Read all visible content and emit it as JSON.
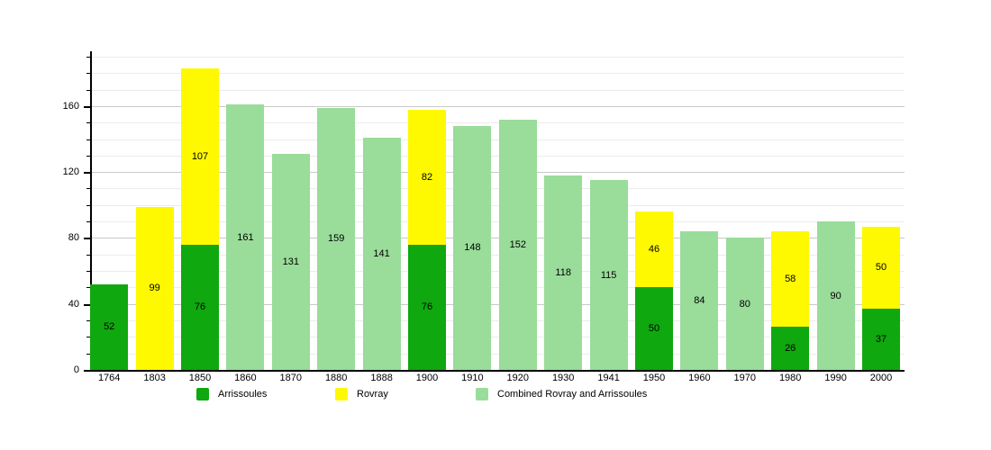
{
  "chart_data": {
    "type": "bar",
    "stacked": true,
    "title": "",
    "xlabel": "",
    "ylabel": "",
    "categories": [
      "1764",
      "1803",
      "1850",
      "1860",
      "1870",
      "1880",
      "1888",
      "1900",
      "1910",
      "1920",
      "1930",
      "1941",
      "1950",
      "1960",
      "1970",
      "1980",
      "1990",
      "2000"
    ],
    "series": [
      {
        "name": "Arrissoules",
        "color": "#0fa80f",
        "values": [
          52,
          null,
          76,
          null,
          null,
          null,
          null,
          76,
          null,
          null,
          null,
          null,
          50,
          null,
          null,
          26,
          null,
          37
        ]
      },
      {
        "name": "Rovray",
        "color": "#fef800",
        "values": [
          null,
          99,
          107,
          null,
          null,
          null,
          null,
          82,
          null,
          null,
          null,
          null,
          46,
          null,
          null,
          58,
          null,
          50
        ]
      },
      {
        "name": "Combined Rovray and Arrissoules",
        "color": "#9adc9a",
        "values": [
          null,
          null,
          null,
          161,
          131,
          159,
          141,
          null,
          148,
          152,
          118,
          115,
          null,
          84,
          80,
          null,
          90,
          null
        ]
      }
    ],
    "ylim": [
      0,
      192
    ],
    "yticks": [
      0,
      40,
      80,
      120,
      160
    ],
    "minor_tick_step": 10,
    "grid": true,
    "grid_max": 190,
    "legend_position": "bottom",
    "bar_value_labels": true,
    "colors": {
      "axis": "#000000",
      "major_grid": "#c9c9c9",
      "minor_grid": "#ececec",
      "text": "#000000",
      "background": "#ffffff"
    }
  }
}
